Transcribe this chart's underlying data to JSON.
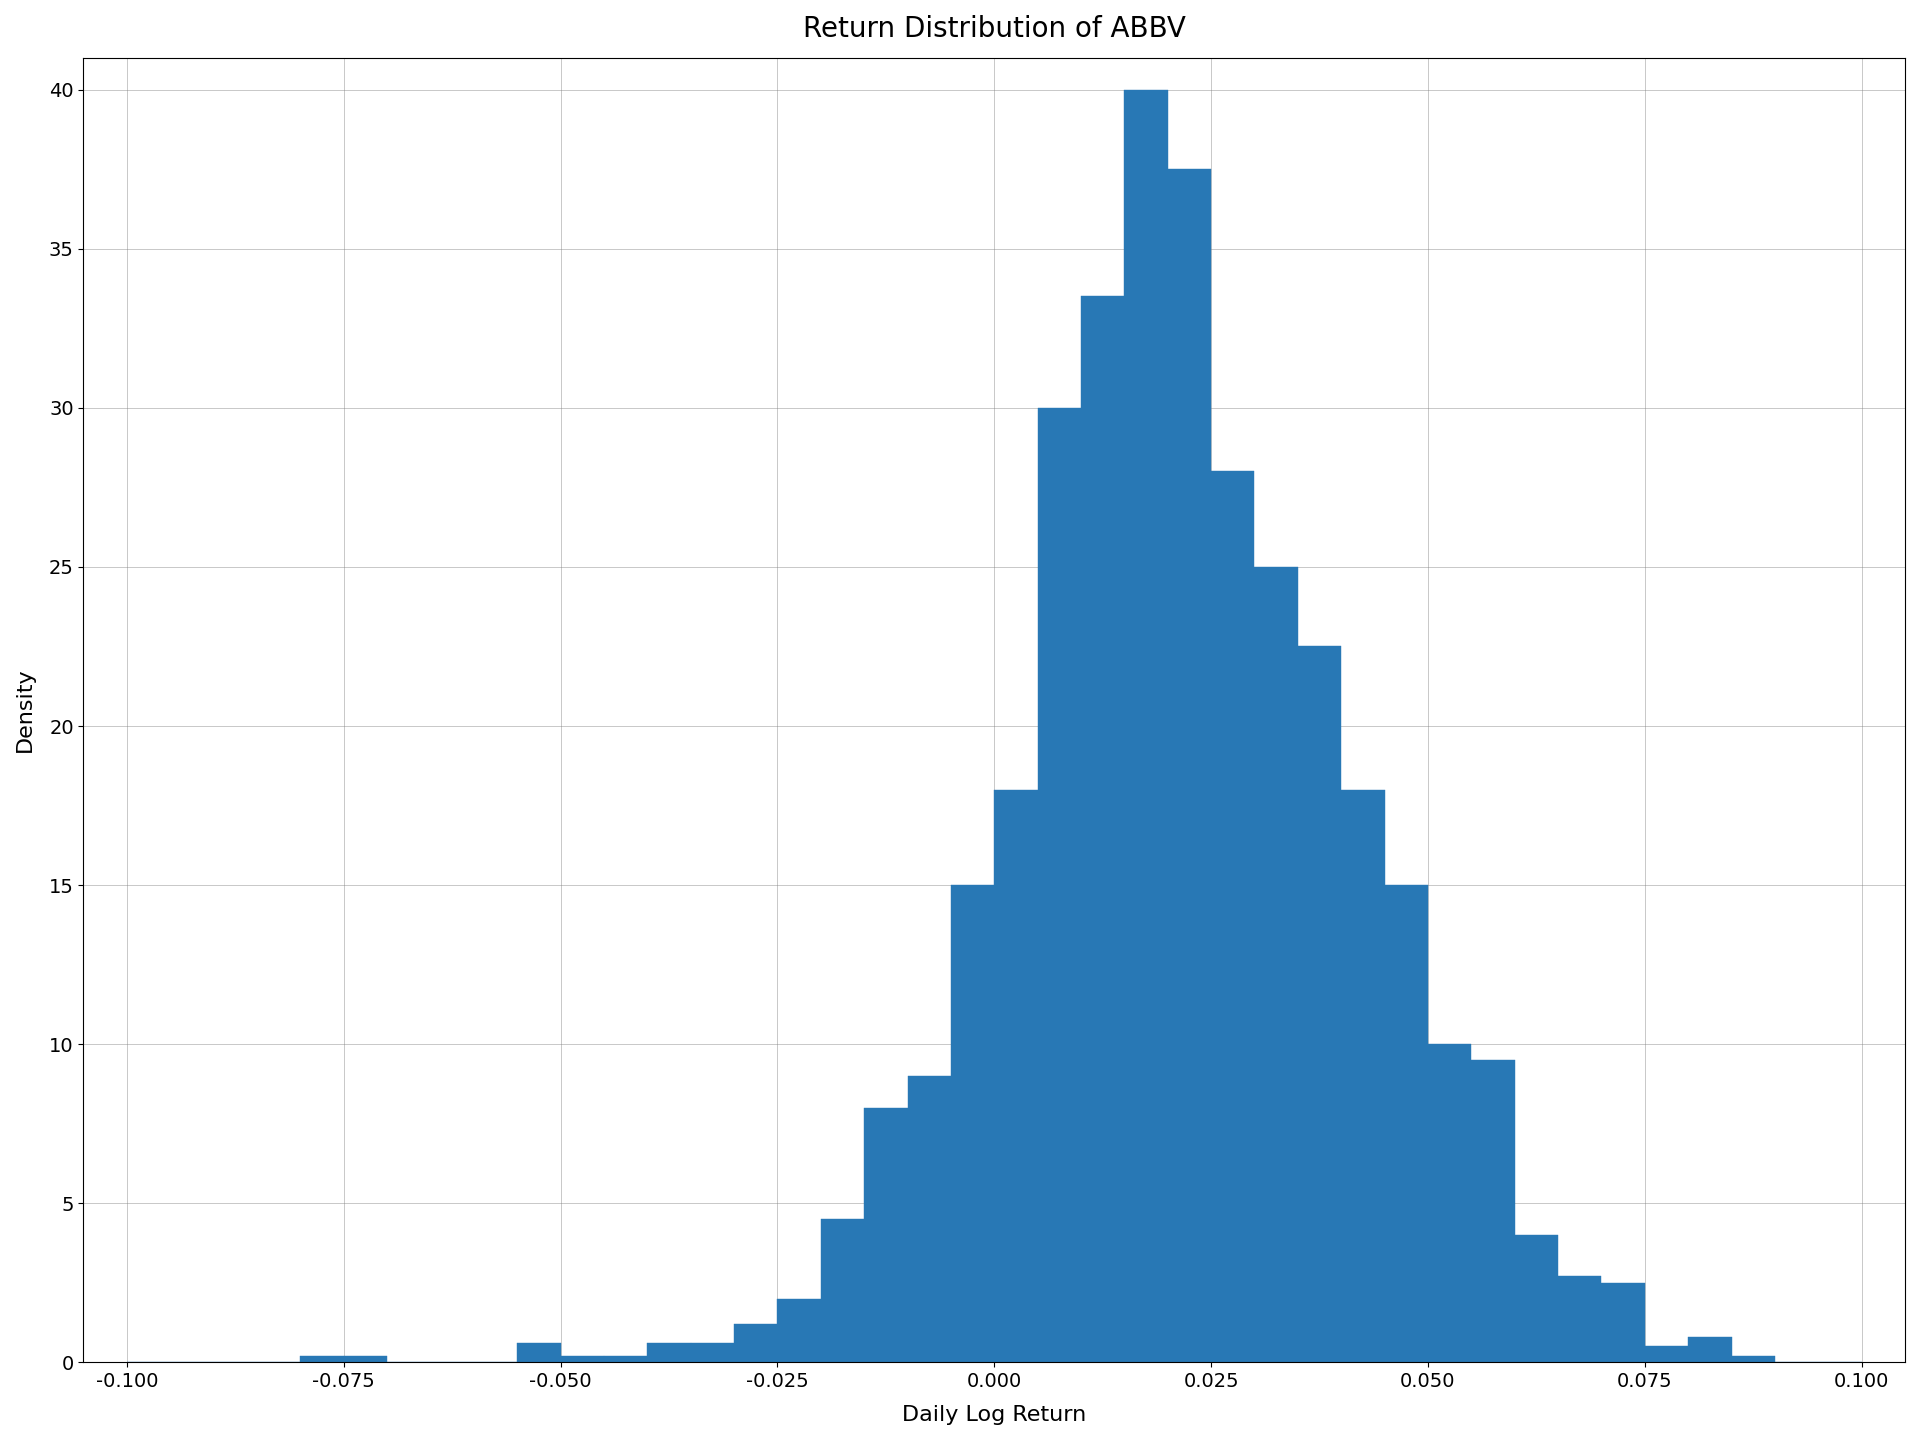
{
  "title": "Return Distribution of ABBV",
  "xlabel": "Daily Log Return",
  "ylabel": "Density",
  "bar_color": "#2878b5",
  "background_color": "#ffffff",
  "xlim": [
    -0.105,
    0.105
  ],
  "ylim": [
    0,
    41
  ],
  "yticks": [
    0,
    5,
    10,
    15,
    20,
    25,
    30,
    35,
    40
  ],
  "xticks": [
    -0.1,
    -0.075,
    -0.05,
    -0.025,
    0.0,
    0.025,
    0.05,
    0.075,
    0.1
  ],
  "xtick_labels": [
    "-0.100",
    "-0.075",
    "-0.050",
    "-0.025",
    "0.000",
    "0.025",
    "0.050",
    "0.075",
    "0.100"
  ],
  "title_fontsize": 20,
  "label_fontsize": 16,
  "tick_fontsize": 14,
  "figsize": [
    19.2,
    14.4
  ],
  "dpi": 100,
  "bin_left_edges": [
    -0.1,
    -0.095,
    -0.09,
    -0.085,
    -0.08,
    -0.075,
    -0.07,
    -0.065,
    -0.06,
    -0.055,
    -0.05,
    -0.045,
    -0.04,
    -0.035,
    -0.03,
    -0.025,
    -0.02,
    -0.015,
    -0.01,
    -0.005,
    0.0,
    0.005,
    0.01,
    0.015,
    0.02,
    0.025,
    0.03,
    0.035,
    0.04,
    0.045,
    0.05,
    0.055,
    0.06,
    0.065,
    0.07,
    0.075,
    0.08,
    0.085,
    0.09,
    0.095
  ],
  "density": [
    0.0,
    0.0,
    0.0,
    0.0,
    0.2,
    0.2,
    0.0,
    0.0,
    0.0,
    0.6,
    0.2,
    0.2,
    0.6,
    0.6,
    1.2,
    2.0,
    4.5,
    8.0,
    9.0,
    15.0,
    18.0,
    30.0,
    33.5,
    40.0,
    37.5,
    28.0,
    25.0,
    22.5,
    18.0,
    15.0,
    10.0,
    9.5,
    4.0,
    2.7,
    2.5,
    0.5,
    0.8,
    0.2,
    0.0,
    0.0
  ]
}
